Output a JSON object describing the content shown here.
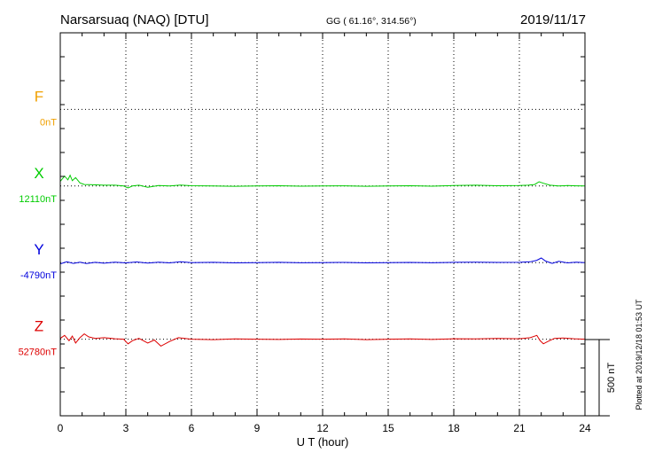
{
  "header": {
    "station": "Narsarsuaq (NAQ)  [DTU]",
    "coords": "GG ( 61.16°, 314.56°)",
    "date": "2019/11/17"
  },
  "plot_note": "Plotted at 2019/12/18 01:53 UT",
  "scale_bar_label": "500 nT",
  "chart_data": {
    "type": "line",
    "title": "Narsarsuaq (NAQ)  [DTU]",
    "xlabel": "U T (hour)",
    "x_ticks": [
      "0",
      "3",
      "6",
      "9",
      "12",
      "15",
      "18",
      "21",
      "24"
    ],
    "xlim": [
      0,
      24
    ],
    "grid": true,
    "scale_nT_per_div": 500,
    "series": [
      {
        "name": "F",
        "baseline_label": "0nT",
        "color": "#f0a000",
        "x": [],
        "y": []
      },
      {
        "name": "X",
        "baseline_label": "12110nT",
        "color": "#00cc00",
        "x": [
          0,
          0.2,
          0.35,
          0.45,
          0.55,
          0.7,
          0.9,
          1.1,
          1.5,
          2,
          2.5,
          2.9,
          3.1,
          3.3,
          3.6,
          4,
          4.5,
          5,
          5.5,
          6,
          7,
          8,
          9,
          10,
          11,
          12,
          13,
          14,
          15,
          16,
          17,
          18,
          19,
          20,
          21,
          21.4,
          21.7,
          21.9,
          22.1,
          22.4,
          22.8,
          23.2,
          23.6,
          24
        ],
        "y": [
          30,
          65,
          40,
          70,
          35,
          55,
          20,
          10,
          8,
          5,
          5,
          0,
          -12,
          0,
          5,
          -8,
          3,
          0,
          6,
          2,
          0,
          -2,
          0,
          2,
          -1,
          0,
          1,
          -2,
          0,
          2,
          -1,
          3,
          5,
          2,
          3,
          5,
          10,
          28,
          18,
          5,
          0,
          3,
          1,
          0
        ]
      },
      {
        "name": "Y",
        "baseline_label": "-4790nT",
        "color": "#0000dd",
        "x": [
          0,
          0.3,
          0.6,
          0.9,
          1.2,
          1.6,
          2,
          2.5,
          3,
          3.5,
          4,
          4.5,
          5,
          5.5,
          6,
          7,
          8,
          9,
          10,
          11,
          12,
          13,
          14,
          15,
          16,
          17,
          18,
          19,
          20,
          21,
          21.5,
          21.8,
          22,
          22.2,
          22.5,
          22.8,
          23.2,
          23.6,
          24
        ],
        "y": [
          -8,
          5,
          -5,
          3,
          -6,
          2,
          -4,
          3,
          -2,
          4,
          -3,
          3,
          -2,
          5,
          0,
          2,
          -2,
          0,
          2,
          -1,
          0,
          1,
          -2,
          0,
          1,
          -1,
          2,
          3,
          1,
          2,
          5,
          15,
          30,
          10,
          -5,
          8,
          -2,
          3,
          0
        ]
      },
      {
        "name": "Z",
        "baseline_label": "52780nT",
        "color": "#dd0000",
        "x": [
          0,
          0.2,
          0.4,
          0.55,
          0.7,
          0.9,
          1.1,
          1.3,
          1.6,
          2,
          2.5,
          2.9,
          3.1,
          3.3,
          3.6,
          4,
          4.3,
          4.6,
          5,
          5.4,
          6,
          7,
          8,
          9,
          10,
          11,
          12,
          13,
          14,
          15,
          16,
          17,
          18,
          19,
          20,
          21,
          21.5,
          21.8,
          21.95,
          22.1,
          22.3,
          22.6,
          23,
          23.5,
          24
        ],
        "y": [
          5,
          25,
          -10,
          20,
          -25,
          10,
          35,
          15,
          5,
          10,
          3,
          0,
          -30,
          -10,
          5,
          -25,
          -5,
          -45,
          -15,
          10,
          0,
          -3,
          2,
          0,
          -2,
          1,
          0,
          2,
          -3,
          0,
          2,
          -2,
          3,
          2,
          5,
          3,
          10,
          25,
          -10,
          -30,
          -15,
          5,
          8,
          3,
          0
        ]
      }
    ]
  }
}
